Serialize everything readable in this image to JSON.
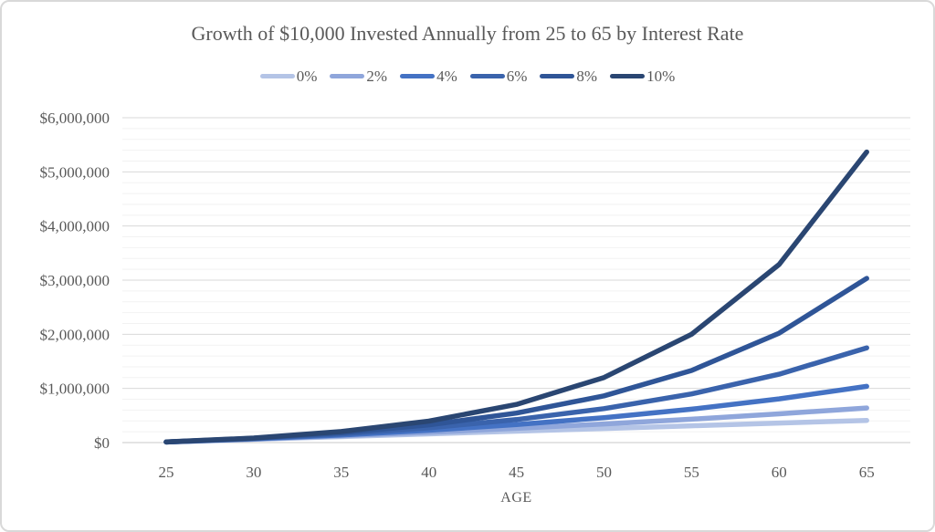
{
  "chart": {
    "title": "Growth of $10,000 Invested Annually from 25 to 65 by Interest Rate"
  },
  "chart_data": {
    "type": "line",
    "title": "Growth of $10,000 Invested Annually from 25 to 65 by Interest Rate",
    "xlabel": "AGE",
    "ylabel": "",
    "categories": [
      25,
      30,
      35,
      40,
      45,
      50,
      55,
      60,
      65
    ],
    "series": [
      {
        "name": "0%",
        "color": "#B4C4E6",
        "values": [
          10000,
          60000,
          110000,
          160000,
          210000,
          260000,
          310000,
          360000,
          410000
        ]
      },
      {
        "name": "2%",
        "color": "#8FA6DB",
        "values": [
          10200,
          64343,
          124121,
          190123,
          262990,
          343443,
          432270,
          530343,
          638620
        ]
      },
      {
        "name": "4%",
        "color": "#4472C4",
        "values": [
          10400,
          68983,
          140258,
          226975,
          332480,
          460842,
          617015,
          807023,
          1038200
        ]
      },
      {
        "name": "6%",
        "color": "#3A63AC",
        "values": [
          10600,
          73938,
          158699,
          272129,
          423923,
          627058,
          898898,
          1262680,
          1749505
        ]
      },
      {
        "name": "8%",
        "color": "#2F5597",
        "values": [
          10800,
          79228,
          179771,
          327502,
          544568,
          863508,
          1332135,
          2020703,
          3032438
        ]
      },
      {
        "name": "10%",
        "color": "#2A4672",
        "values": [
          11000,
          84872,
          203843,
          395447,
          704027,
          1200999,
          2001378,
          3290395,
          5366370
        ]
      }
    ],
    "ylim": [
      0,
      6000000
    ],
    "y_major_unit": 1000000,
    "y_minor_unit": 200000,
    "y_tick_labels": [
      "$0",
      "$1,000,000",
      "$2,000,000",
      "$3,000,000",
      "$4,000,000",
      "$5,000,000",
      "$6,000,000"
    ],
    "grid": true,
    "legend_position": "top",
    "grid_major_color": "#D9D9D9",
    "grid_minor_color": "#F2F2F2",
    "axis_line_color": "#C8C8C8",
    "text_color": "#595959",
    "border_color": "#D9D9D9"
  }
}
